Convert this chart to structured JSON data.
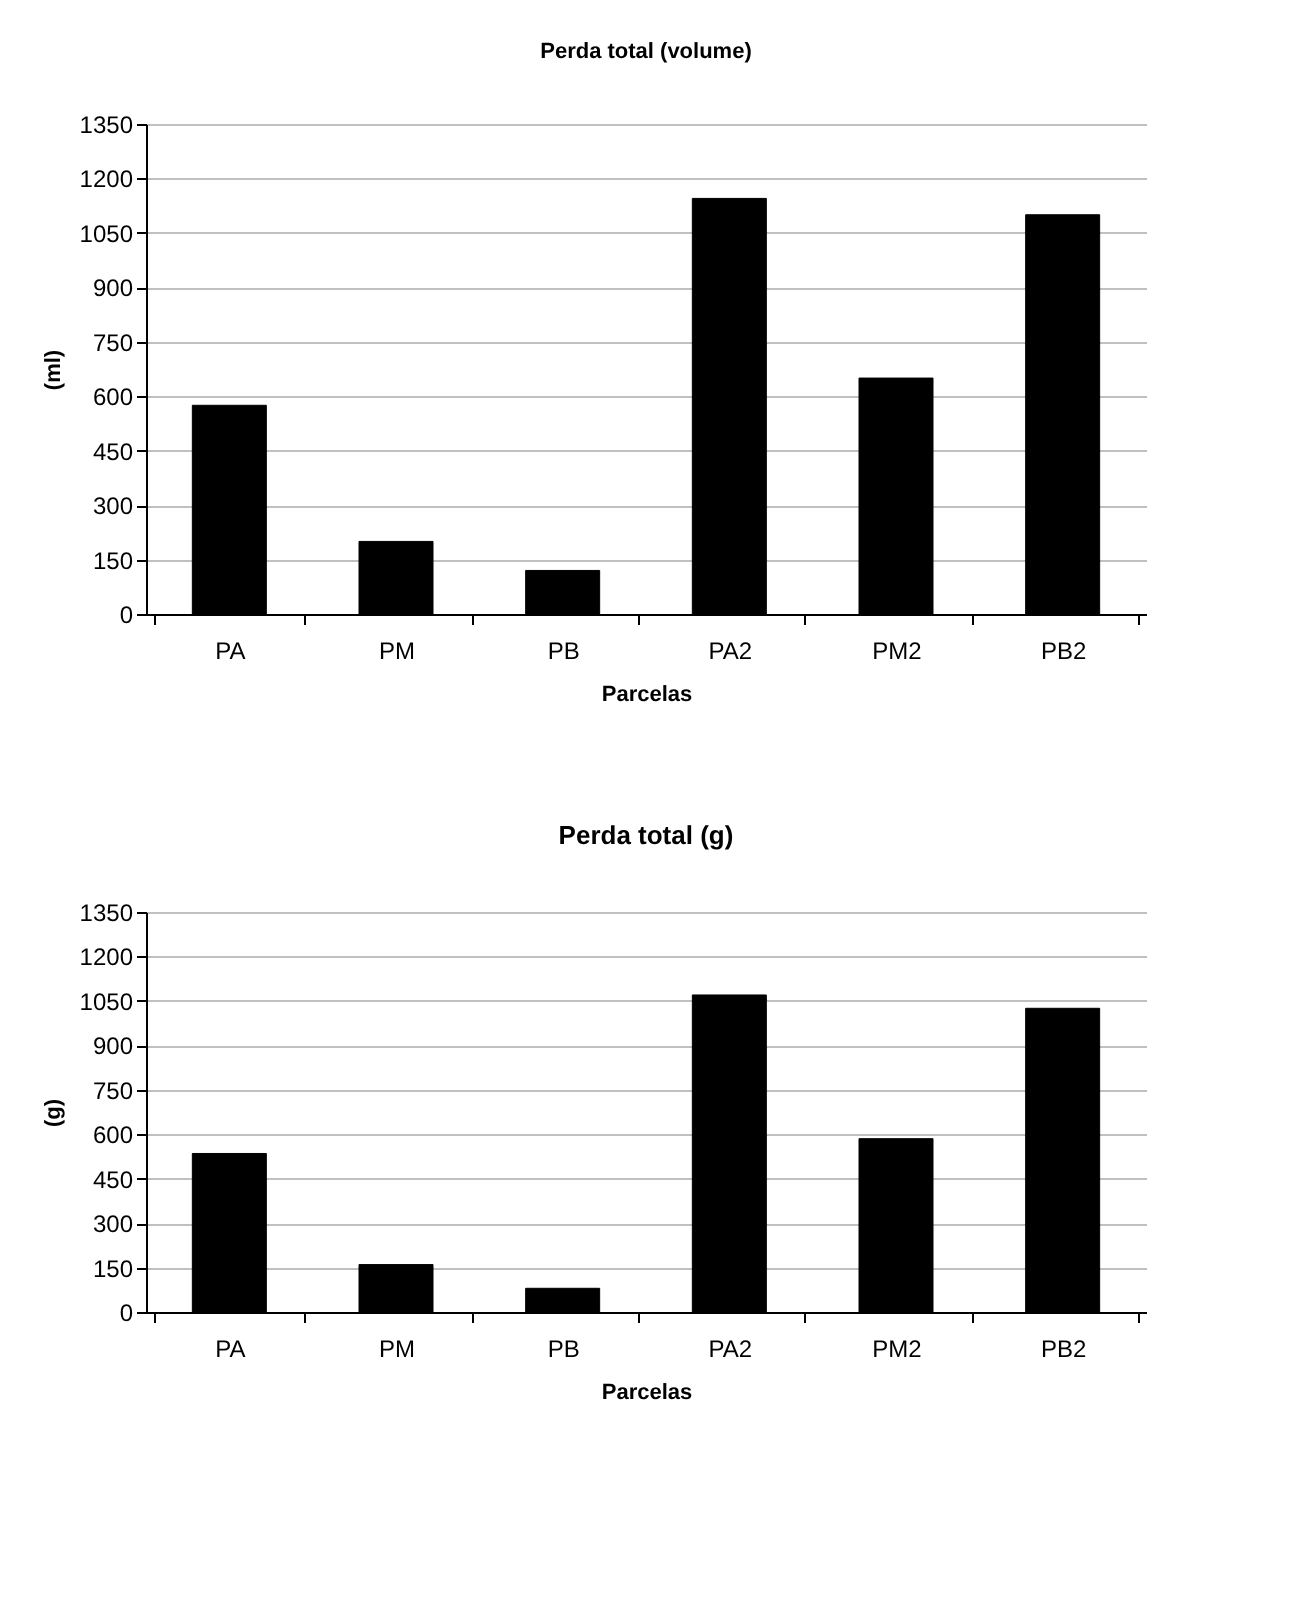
{
  "chart_data": [
    {
      "type": "bar",
      "title": "Perda total (volume)",
      "xlabel": "Parcelas",
      "ylabel": "(ml)",
      "categories": [
        "PA",
        "PM",
        "PB",
        "PA2",
        "PM2",
        "PB2"
      ],
      "values": [
        575,
        200,
        120,
        1145,
        650,
        1100
      ],
      "color": "#000000",
      "ylim": [
        0,
        1350
      ],
      "yticks": [
        0,
        150,
        300,
        450,
        600,
        750,
        900,
        1050,
        1200,
        1350
      ],
      "grid": "y"
    },
    {
      "type": "bar",
      "title": "Perda total (g)",
      "xlabel": "Parcelas",
      "ylabel": "(g)",
      "categories": [
        "PA",
        "PM",
        "PB",
        "PA2",
        "PM2",
        "PB2"
      ],
      "values": [
        535,
        160,
        80,
        1070,
        585,
        1025
      ],
      "color": "#000000",
      "ylim": [
        0,
        1350
      ],
      "yticks": [
        0,
        150,
        300,
        450,
        600,
        750,
        900,
        1050,
        1200,
        1350
      ],
      "grid": "y"
    }
  ]
}
